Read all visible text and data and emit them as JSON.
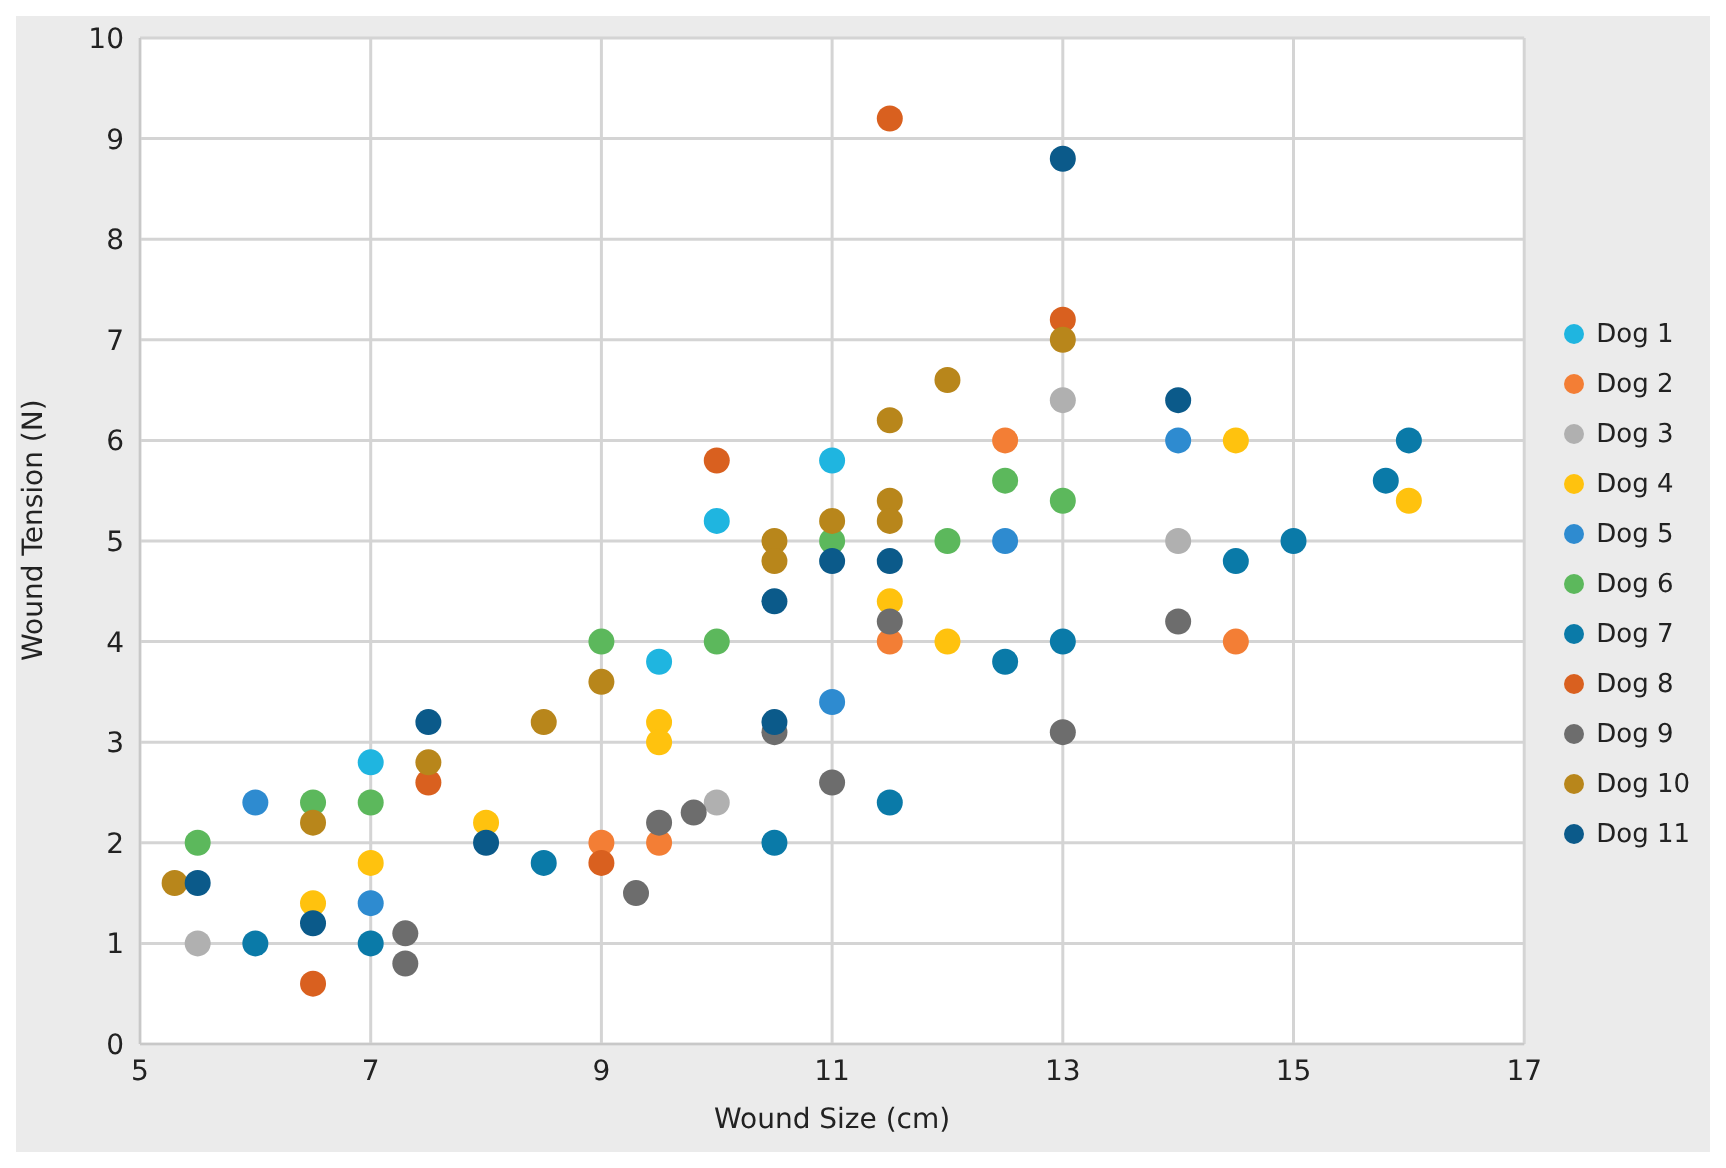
{
  "chart_data": {
    "type": "scatter",
    "xlabel": "Wound Size (cm)",
    "ylabel": "Wound Tension (N)",
    "xlim": [
      5,
      17
    ],
    "xticks": [
      5,
      7,
      9,
      11,
      13,
      15,
      17
    ],
    "ylim": [
      0,
      10
    ],
    "yticks": [
      0,
      1,
      2,
      3,
      4,
      5,
      6,
      7,
      8,
      9,
      10
    ],
    "grid": true,
    "legend": "right",
    "marker": "circle",
    "series": [
      {
        "name": "Dog 1",
        "color": "#1fb5e0",
        "x": [
          7,
          9.5,
          10,
          11
        ],
        "values": [
          2.8,
          3.8,
          5.2,
          5.8
        ]
      },
      {
        "name": "Dog 2",
        "color": "#f37e35",
        "x": [
          9,
          9.5,
          11.5,
          12.5,
          14.5
        ],
        "values": [
          2.0,
          2.0,
          4.0,
          6.0,
          4.0
        ]
      },
      {
        "name": "Dog 3",
        "color": "#b0b0b0",
        "x": [
          5.5,
          10,
          13,
          14
        ],
        "values": [
          1.0,
          2.4,
          6.4,
          5.0
        ]
      },
      {
        "name": "Dog 4",
        "color": "#ffc20e",
        "x": [
          6.5,
          7,
          8,
          9.5,
          9.5,
          11.5,
          12,
          14.5,
          16
        ],
        "values": [
          1.4,
          1.8,
          2.2,
          3.2,
          3.0,
          4.4,
          4.0,
          6.0,
          5.4
        ]
      },
      {
        "name": "Dog 5",
        "color": "#2e8bd0",
        "x": [
          6,
          7,
          11,
          12.5,
          14
        ],
        "values": [
          2.4,
          1.4,
          3.4,
          5.0,
          6.0
        ]
      },
      {
        "name": "Dog 6",
        "color": "#5cb85c",
        "x": [
          5.5,
          6.5,
          7,
          9,
          10,
          11,
          12,
          12.5,
          13
        ],
        "values": [
          2.0,
          2.4,
          2.4,
          4.0,
          4.0,
          5.0,
          5.0,
          5.6,
          5.4
        ]
      },
      {
        "name": "Dog 7",
        "color": "#0a7aa8",
        "x": [
          6,
          7,
          8.5,
          10.5,
          11.5,
          12.5,
          13,
          14.5,
          15,
          15.8,
          16
        ],
        "values": [
          1.0,
          1.0,
          1.8,
          2.0,
          2.4,
          3.8,
          4.0,
          4.8,
          5.0,
          5.6,
          6.0
        ]
      },
      {
        "name": "Dog 8",
        "color": "#d9601f",
        "x": [
          6.5,
          7.5,
          9,
          10,
          11.5,
          13
        ],
        "values": [
          0.6,
          2.6,
          1.8,
          5.8,
          9.2,
          7.2
        ]
      },
      {
        "name": "Dog 9",
        "color": "#6d6d6d",
        "x": [
          7.3,
          7.3,
          9.3,
          9.5,
          9.8,
          10.5,
          11,
          11.5,
          13,
          14
        ],
        "values": [
          1.1,
          0.8,
          1.5,
          2.2,
          2.3,
          3.1,
          2.6,
          4.2,
          3.1,
          4.2
        ]
      },
      {
        "name": "Dog 10",
        "color": "#b8861b",
        "x": [
          5.3,
          6.5,
          7.5,
          8.5,
          9,
          10.5,
          10.5,
          11,
          11.5,
          11.5,
          11.5,
          12,
          13
        ],
        "values": [
          1.6,
          2.2,
          2.8,
          3.2,
          3.6,
          5.0,
          4.8,
          5.2,
          6.2,
          5.4,
          5.2,
          6.6,
          7.0
        ]
      },
      {
        "name": "Dog 11",
        "color": "#0b5a8a",
        "x": [
          5.5,
          6.5,
          7.5,
          8,
          10.5,
          10.5,
          11,
          11.5,
          13,
          14
        ],
        "values": [
          1.6,
          1.2,
          3.2,
          2.0,
          4.4,
          3.2,
          4.8,
          4.8,
          8.8,
          6.4
        ]
      }
    ]
  }
}
